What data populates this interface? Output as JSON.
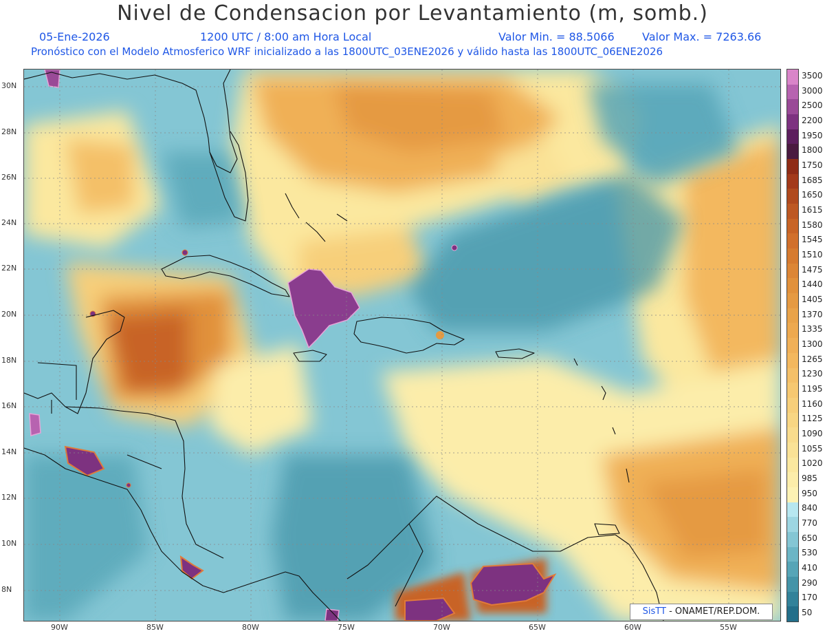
{
  "header": {
    "title": "Nivel de Condensacion por Levantamiento (m, somb.)",
    "date": "05-Ene-2026",
    "time": "1200 UTC / 8:00 am Hora Local",
    "min_value": "Valor Min. = 88.5066",
    "max_value": "Valor Max. = 7263.66",
    "model_info": "Pronóstico con el Modelo Atmosferico WRF inicializado a las 1800UTC_03ENE2026 y válido hasta las  1800UTC_06ENE2026"
  },
  "axes": {
    "lat_labels": [
      "30N",
      "28N",
      "26N",
      "24N",
      "22N",
      "20N",
      "18N",
      "16N",
      "14N",
      "12N",
      "10N",
      "8N"
    ],
    "lon_labels": [
      "90W",
      "85W",
      "80W",
      "75W",
      "70W",
      "65W",
      "60W",
      "55W"
    ]
  },
  "legend": {
    "labels": [
      "3500",
      "3000",
      "2500",
      "2200",
      "1950",
      "1800",
      "1750",
      "1685",
      "1650",
      "1615",
      "1580",
      "1545",
      "1510",
      "1475",
      "1440",
      "1405",
      "1370",
      "1335",
      "1300",
      "1265",
      "1230",
      "1195",
      "1160",
      "1125",
      "1090",
      "1055",
      "1020",
      "985",
      "950",
      "840",
      "770",
      "650",
      "530",
      "410",
      "290",
      "170",
      "50"
    ],
    "colors": [
      "#d985c9",
      "#b763b0",
      "#9a4a97",
      "#7d3280",
      "#5d1f5e",
      "#4a1a40",
      "#8f2c16",
      "#a33a1a",
      "#b04a1e",
      "#bd5823",
      "#c86426",
      "#d1702c",
      "#d67b30",
      "#dc8636",
      "#e1913b",
      "#e59a42",
      "#e9a349",
      "#eda94f",
      "#f0b057",
      "#f3b85e",
      "#f4c068",
      "#f6c871",
      "#f7cf7a",
      "#f8d683",
      "#f9dc8d",
      "#fae296",
      "#fbe89f",
      "#fcedaa",
      "#fdf2b4",
      "#b7e7f0",
      "#9dd6e2",
      "#84c6d4",
      "#6cb6c6",
      "#56a5b7",
      "#4494a8",
      "#32829a",
      "#236f8a"
    ]
  },
  "credit": {
    "brand": "SisTT",
    "org": "- ONAMET/REP.DOM."
  },
  "colors": {
    "low": "#6cb6c6",
    "mid": "#fcedaa",
    "orange": "#f0b057",
    "brown": "#d1702c",
    "purple": "#8a3d8e"
  }
}
